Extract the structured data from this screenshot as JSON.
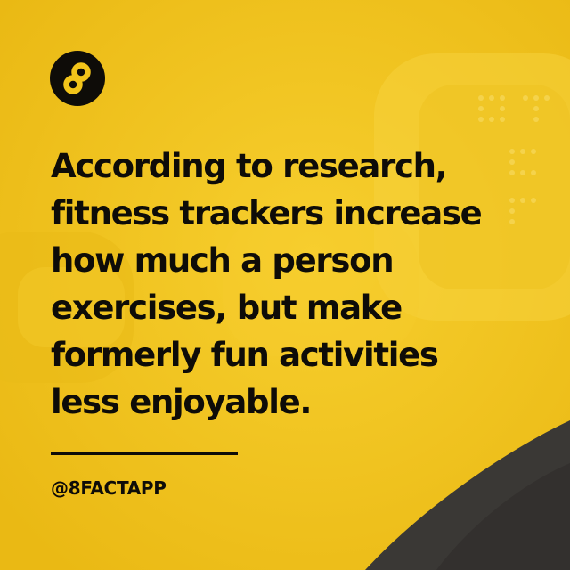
{
  "headline": {
    "lines": [
      "According to research,",
      "fitness trackers increase",
      "how much a person",
      "exercises, but make",
      "formerly fun activities",
      "less enjoyable."
    ]
  },
  "handle": "@8FACTAPP",
  "colors": {
    "background": "#f2c41a",
    "text": "#0e0c08",
    "corner": "#3a3835"
  },
  "logo": {
    "icon": "infinity-eight-icon"
  }
}
